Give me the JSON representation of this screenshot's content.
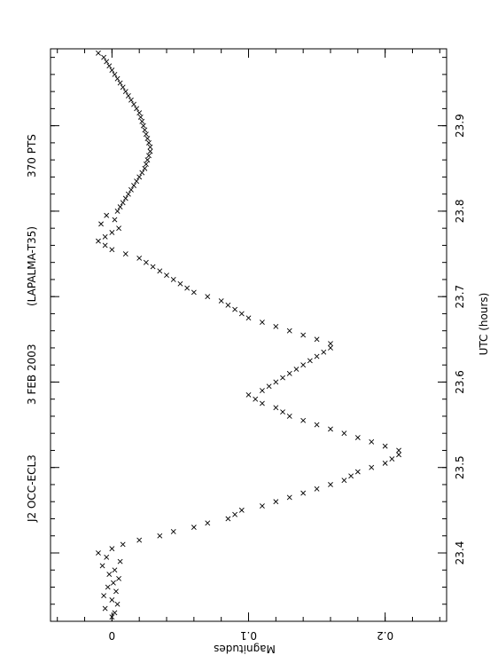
{
  "chart_data": {
    "type": "scatter",
    "title_parts": [
      "J2 OCC-ECL3",
      "3 FEB 2003",
      "(LAPALMA-T35)",
      "370 PTS"
    ],
    "xlabel": "UTC (hours)",
    "ylabel": "Magnitudes",
    "xlim": [
      23.32,
      23.99
    ],
    "ylim": [
      -0.045,
      0.245
    ],
    "y_inverted": true,
    "rotation_deg": 90,
    "marker": "x",
    "grid": false,
    "x_ticks": [
      23.4,
      23.5,
      23.6,
      23.7,
      23.8,
      23.9
    ],
    "x_tick_labels": [
      "23.4",
      "23.5",
      "23.6",
      "23.7",
      "23.8",
      "23.9"
    ],
    "y_ticks": [
      0,
      0.1,
      0.2
    ],
    "y_tick_labels": [
      "0",
      "0.1",
      "0.2"
    ],
    "x": [
      23.325,
      23.33,
      23.335,
      23.34,
      23.345,
      23.35,
      23.355,
      23.36,
      23.365,
      23.37,
      23.375,
      23.38,
      23.385,
      23.39,
      23.395,
      23.4,
      23.405,
      23.41,
      23.415,
      23.42,
      23.425,
      23.43,
      23.435,
      23.44,
      23.445,
      23.45,
      23.455,
      23.46,
      23.465,
      23.47,
      23.475,
      23.48,
      23.485,
      23.49,
      23.495,
      23.5,
      23.505,
      23.51,
      23.515,
      23.52,
      23.525,
      23.53,
      23.535,
      23.54,
      23.545,
      23.55,
      23.555,
      23.56,
      23.565,
      23.57,
      23.575,
      23.58,
      23.585,
      23.59,
      23.595,
      23.6,
      23.605,
      23.61,
      23.615,
      23.62,
      23.625,
      23.63,
      23.635,
      23.64,
      23.645,
      23.65,
      23.655,
      23.66,
      23.665,
      23.67,
      23.675,
      23.68,
      23.685,
      23.69,
      23.695,
      23.7,
      23.705,
      23.71,
      23.715,
      23.72,
      23.725,
      23.73,
      23.735,
      23.74,
      23.745,
      23.75,
      23.755,
      23.76,
      23.765,
      23.77,
      23.775,
      23.78,
      23.785,
      23.79,
      23.795,
      23.8,
      23.805,
      23.81,
      23.815,
      23.82,
      23.825,
      23.83,
      23.835,
      23.84,
      23.845,
      23.85,
      23.855,
      23.86,
      23.865,
      23.87,
      23.875,
      23.88,
      23.885,
      23.89,
      23.895,
      23.9,
      23.905,
      23.91,
      23.915,
      23.92,
      23.925,
      23.93,
      23.935,
      23.94,
      23.945,
      23.95,
      23.955,
      23.96,
      23.965,
      23.97,
      23.975,
      23.98,
      23.985
    ],
    "y": [
      0.0,
      0.002,
      -0.005,
      0.004,
      0.0,
      -0.006,
      0.003,
      -0.003,
      0.001,
      0.005,
      -0.002,
      0.002,
      -0.007,
      0.006,
      -0.004,
      -0.01,
      0.0,
      0.008,
      0.02,
      0.035,
      0.045,
      0.06,
      0.07,
      0.085,
      0.09,
      0.095,
      0.11,
      0.12,
      0.13,
      0.14,
      0.15,
      0.16,
      0.17,
      0.175,
      0.18,
      0.19,
      0.2,
      0.205,
      0.21,
      0.21,
      0.2,
      0.19,
      0.18,
      0.17,
      0.16,
      0.15,
      0.14,
      0.13,
      0.125,
      0.12,
      0.11,
      0.105,
      0.1,
      0.11,
      0.115,
      0.12,
      0.125,
      0.13,
      0.135,
      0.14,
      0.145,
      0.15,
      0.155,
      0.16,
      0.16,
      0.15,
      0.14,
      0.13,
      0.12,
      0.11,
      0.1,
      0.095,
      0.09,
      0.085,
      0.08,
      0.07,
      0.06,
      0.055,
      0.05,
      0.045,
      0.04,
      0.035,
      0.03,
      0.025,
      0.02,
      0.01,
      0.0,
      -0.005,
      -0.01,
      -0.005,
      0.0,
      0.005,
      -0.008,
      0.002,
      -0.004,
      0.004,
      0.006,
      0.008,
      0.01,
      0.012,
      0.014,
      0.016,
      0.018,
      0.02,
      0.022,
      0.024,
      0.025,
      0.026,
      0.027,
      0.028,
      0.028,
      0.027,
      0.026,
      0.025,
      0.024,
      0.023,
      0.022,
      0.021,
      0.02,
      0.018,
      0.016,
      0.014,
      0.012,
      0.01,
      0.008,
      0.006,
      0.004,
      0.002,
      0.0,
      -0.002,
      -0.004,
      -0.006,
      -0.01
    ]
  }
}
